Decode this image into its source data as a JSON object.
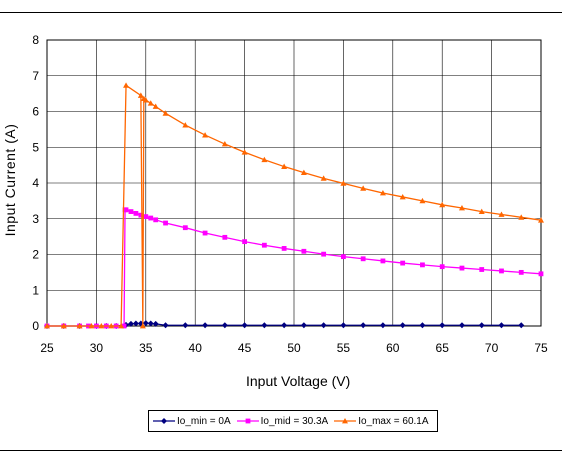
{
  "chart_data": {
    "type": "line",
    "title": "",
    "xlabel": "Input Voltage (V)",
    "ylabel": "Input Current (A)",
    "xlim": [
      25,
      75
    ],
    "ylim": [
      0,
      8
    ],
    "xticks": [
      "25",
      "30",
      "35",
      "40",
      "45",
      "50",
      "55",
      "60",
      "65",
      "70",
      "75"
    ],
    "yticks": [
      "0",
      "1",
      "2",
      "3",
      "4",
      "5",
      "6",
      "7",
      "8"
    ],
    "grid": true,
    "legend_position": "bottom",
    "series": [
      {
        "name": "Io_min = 0A",
        "color": "#000080",
        "marker": "diamond",
        "x": [
          25,
          26.7,
          28.3,
          30,
          31,
          32,
          33,
          33.5,
          34,
          34.5,
          35,
          35.5,
          36,
          37,
          39,
          41,
          43,
          45,
          47,
          49,
          51,
          53,
          55,
          57,
          59,
          61,
          63,
          65,
          67,
          69,
          71,
          73
        ],
        "y": [
          0,
          0,
          0,
          0,
          0,
          0,
          0.03,
          0.06,
          0.07,
          0.07,
          0.08,
          0.07,
          0.06,
          0.02,
          0.02,
          0.02,
          0.02,
          0.02,
          0.02,
          0.02,
          0.02,
          0.02,
          0.02,
          0.02,
          0.02,
          0.02,
          0.02,
          0.02,
          0.02,
          0.02,
          0.02,
          0.02
        ]
      },
      {
        "name": "Io_mid = 30.3A",
        "color": "#FF00FF",
        "marker": "square",
        "x": [
          25,
          26.7,
          28.3,
          29.2,
          30,
          31,
          32,
          32.8,
          32.9,
          33,
          33.5,
          34,
          34.5,
          35,
          35.5,
          36,
          37,
          39,
          41,
          43,
          45,
          47,
          49,
          51,
          53,
          55,
          57,
          59,
          61,
          63,
          65,
          67,
          69,
          71,
          73,
          75
        ],
        "y": [
          0,
          0,
          0,
          0,
          0,
          0,
          0,
          0,
          3.25,
          3.25,
          3.2,
          3.15,
          3.1,
          3.06,
          3.02,
          2.97,
          2.88,
          2.75,
          2.6,
          2.48,
          2.36,
          2.26,
          2.17,
          2.09,
          2.01,
          1.94,
          1.88,
          1.82,
          1.76,
          1.71,
          1.66,
          1.62,
          1.58,
          1.54,
          1.5,
          1.46
        ]
      },
      {
        "name": "Io_max = 60.1A",
        "color": "#FF6600",
        "marker": "triangle",
        "x": [
          25,
          26.7,
          28.3,
          29.5,
          30.5,
          31.5,
          32.5,
          33,
          34.5,
          34.7,
          34.8,
          35,
          35.5,
          36,
          37,
          39,
          41,
          43,
          45,
          47,
          49,
          51,
          53,
          55,
          57,
          59,
          61,
          63,
          65,
          67,
          69,
          71,
          73,
          75
        ],
        "y": [
          0,
          0,
          0,
          0,
          0,
          0,
          0,
          6.73,
          6.45,
          0,
          6.36,
          6.32,
          6.23,
          6.14,
          5.95,
          5.62,
          5.34,
          5.09,
          4.86,
          4.65,
          4.46,
          4.29,
          4.13,
          3.99,
          3.85,
          3.72,
          3.61,
          3.5,
          3.39,
          3.3,
          3.2,
          3.12,
          3.04,
          2.96
        ]
      }
    ]
  }
}
